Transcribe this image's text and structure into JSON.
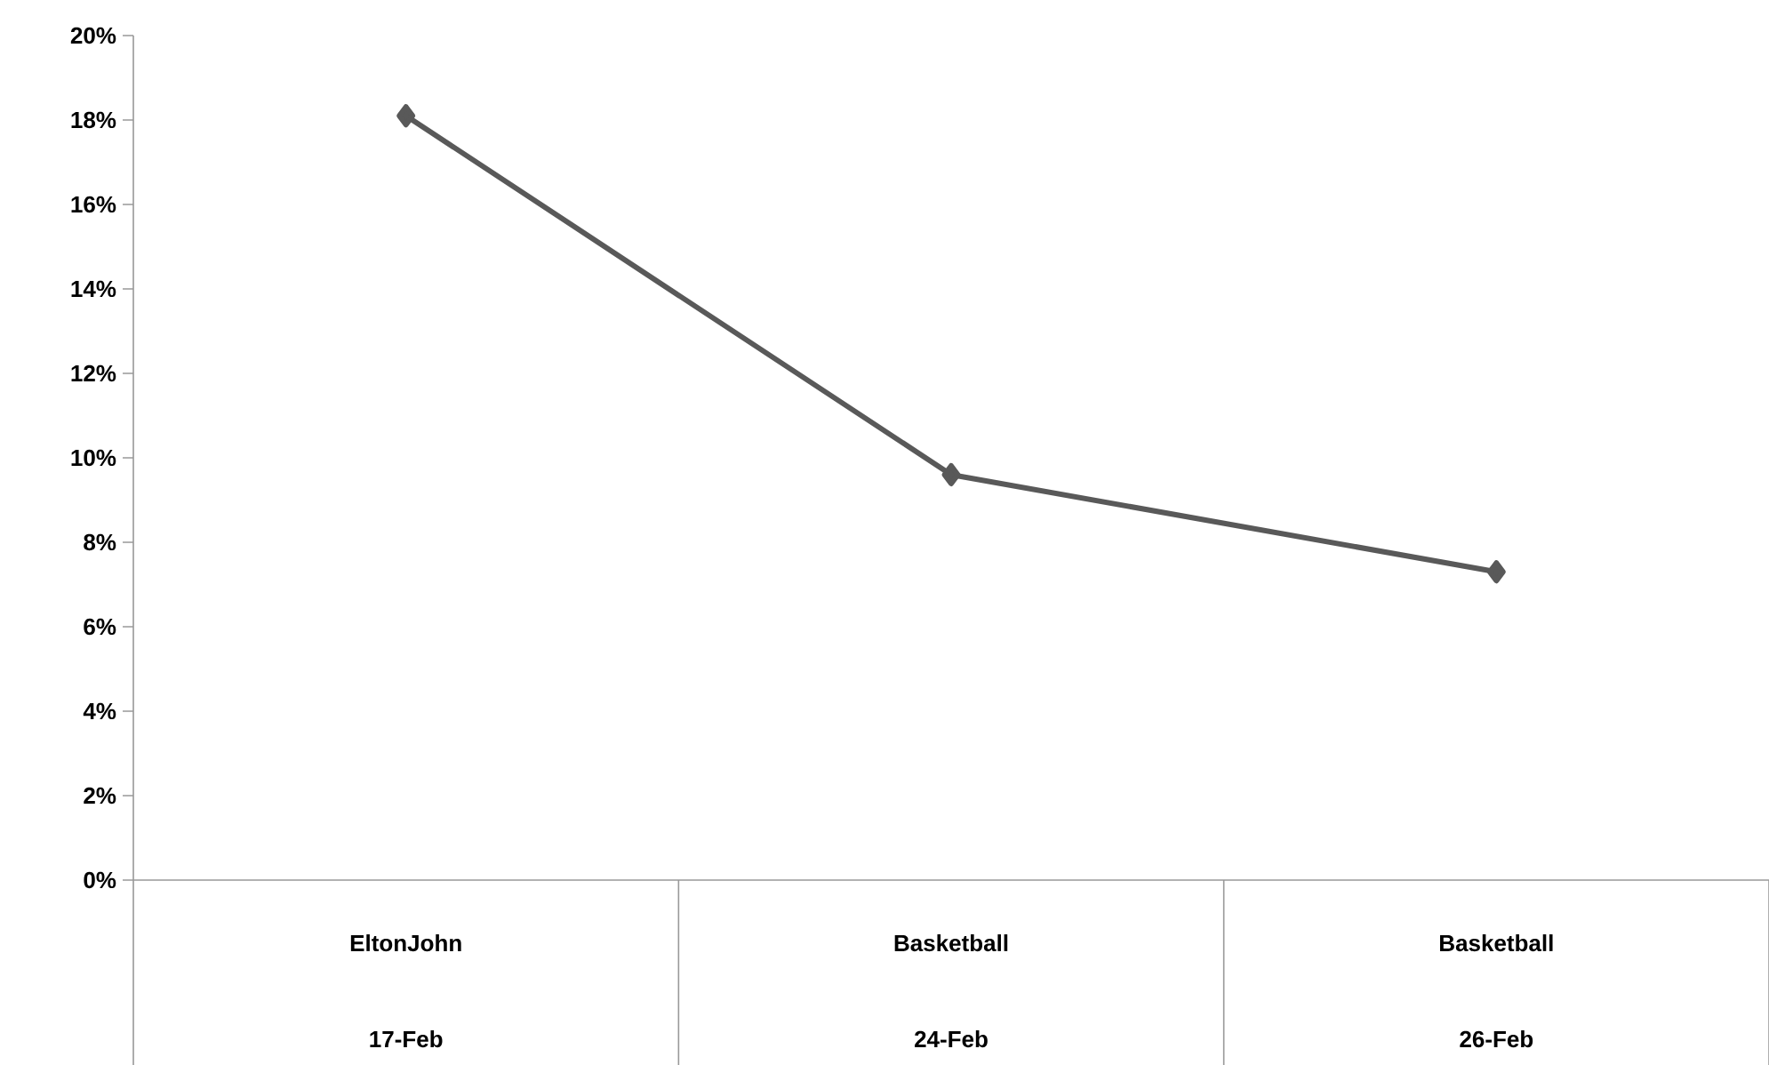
{
  "chart_data": {
    "type": "line",
    "categories": [
      "EltonJohn 17-Feb",
      "Basketball 24-Feb",
      "Basketball 26-Feb"
    ],
    "series": [
      {
        "color": "#595959",
        "values": [
          18.1,
          9.6,
          7.3
        ]
      }
    ],
    "marker": "diamond",
    "line_style": "solid",
    "grid": false,
    "ylim": [
      0,
      20
    ],
    "yticks": [
      {
        "value": 0,
        "label": "0%"
      },
      {
        "value": 2,
        "label": "2%"
      },
      {
        "value": 4,
        "label": "4%"
      },
      {
        "value": 6,
        "label": "6%"
      },
      {
        "value": 8,
        "label": "8%"
      },
      {
        "value": 10,
        "label": "10%"
      },
      {
        "value": 12,
        "label": "12%"
      },
      {
        "value": 14,
        "label": "14%"
      },
      {
        "value": 16,
        "label": "16%"
      },
      {
        "value": 18,
        "label": "18%"
      },
      {
        "value": 20,
        "label": "20%"
      }
    ]
  }
}
